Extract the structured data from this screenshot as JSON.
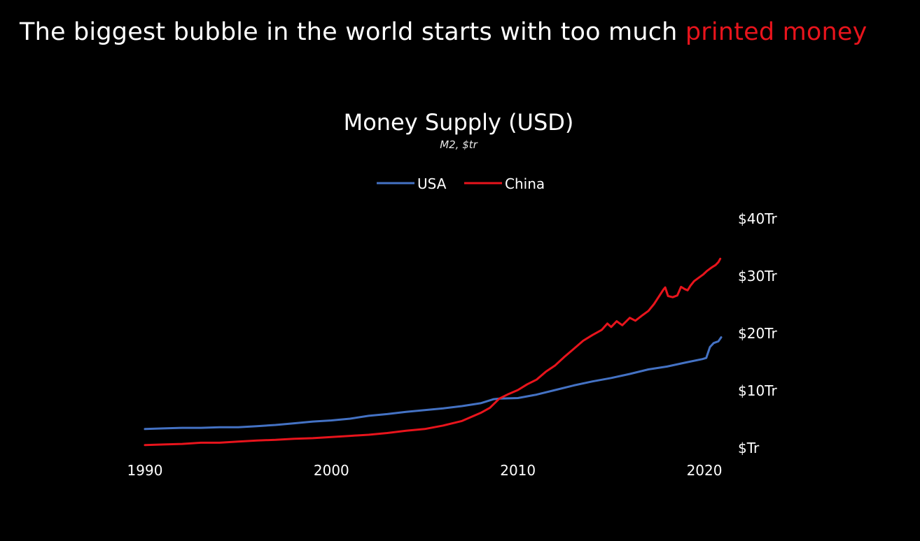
{
  "headline": {
    "text": "The biggest bubble in the world starts with too much ",
    "highlight": "printed money",
    "highlight_color": "#e8141c"
  },
  "chart_data": {
    "type": "line",
    "title": "Money Supply (USD)",
    "subtitle": "M2, $tr",
    "legend_position": "top-center",
    "grid": false,
    "y_axis_position": "right",
    "xlim": [
      1990,
      2020.9
    ],
    "ylim": [
      0,
      40
    ],
    "x_ticks": [
      1990,
      2000,
      2010,
      2020
    ],
    "x_tick_labels": [
      "1990",
      "2000",
      "2010",
      "2020"
    ],
    "y_ticks": [
      0,
      10,
      20,
      30,
      40
    ],
    "y_tick_labels": [
      "$Tr",
      "$10Tr",
      "$20Tr",
      "$30Tr",
      "$40Tr"
    ],
    "series": [
      {
        "name": "USA",
        "color": "#4472c4",
        "points": [
          [
            1990,
            3.2
          ],
          [
            1991,
            3.3
          ],
          [
            1992,
            3.4
          ],
          [
            1993,
            3.4
          ],
          [
            1994,
            3.5
          ],
          [
            1995,
            3.5
          ],
          [
            1996,
            3.7
          ],
          [
            1997,
            3.9
          ],
          [
            1998,
            4.2
          ],
          [
            1999,
            4.5
          ],
          [
            2000,
            4.7
          ],
          [
            2001,
            5.0
          ],
          [
            2002,
            5.5
          ],
          [
            2003,
            5.8
          ],
          [
            2004,
            6.2
          ],
          [
            2005,
            6.5
          ],
          [
            2006,
            6.8
          ],
          [
            2007,
            7.2
          ],
          [
            2008,
            7.7
          ],
          [
            2008.7,
            8.4
          ],
          [
            2009,
            8.5
          ],
          [
            2010,
            8.6
          ],
          [
            2011,
            9.2
          ],
          [
            2012,
            10.0
          ],
          [
            2013,
            10.8
          ],
          [
            2014,
            11.5
          ],
          [
            2015,
            12.1
          ],
          [
            2016,
            12.8
          ],
          [
            2017,
            13.6
          ],
          [
            2018,
            14.1
          ],
          [
            2019,
            14.8
          ],
          [
            2019.9,
            15.4
          ],
          [
            2020.1,
            15.6
          ],
          [
            2020.3,
            17.5
          ],
          [
            2020.5,
            18.2
          ],
          [
            2020.75,
            18.5
          ],
          [
            2020.9,
            19.2
          ]
        ]
      },
      {
        "name": "China",
        "color": "#e8141c",
        "points": [
          [
            1990,
            0.4
          ],
          [
            1991,
            0.5
          ],
          [
            1992,
            0.6
          ],
          [
            1993,
            0.8
          ],
          [
            1994,
            0.8
          ],
          [
            1995,
            1.0
          ],
          [
            1996,
            1.2
          ],
          [
            1997,
            1.3
          ],
          [
            1998,
            1.5
          ],
          [
            1999,
            1.6
          ],
          [
            2000,
            1.8
          ],
          [
            2001,
            2.0
          ],
          [
            2002,
            2.2
          ],
          [
            2003,
            2.5
          ],
          [
            2004,
            2.9
          ],
          [
            2005,
            3.2
          ],
          [
            2006,
            3.8
          ],
          [
            2007,
            4.6
          ],
          [
            2008,
            6.0
          ],
          [
            2008.5,
            6.9
          ],
          [
            2009,
            8.5
          ],
          [
            2009.5,
            9.3
          ],
          [
            2010,
            10.0
          ],
          [
            2010.5,
            11.0
          ],
          [
            2011,
            11.8
          ],
          [
            2011.5,
            13.2
          ],
          [
            2012,
            14.3
          ],
          [
            2012.5,
            15.8
          ],
          [
            2013,
            17.2
          ],
          [
            2013.5,
            18.6
          ],
          [
            2014,
            19.6
          ],
          [
            2014.5,
            20.5
          ],
          [
            2014.8,
            21.6
          ],
          [
            2015,
            21.0
          ],
          [
            2015.3,
            22.0
          ],
          [
            2015.6,
            21.3
          ],
          [
            2016,
            22.6
          ],
          [
            2016.3,
            22.1
          ],
          [
            2016.7,
            23.1
          ],
          [
            2017,
            23.8
          ],
          [
            2017.3,
            25.0
          ],
          [
            2017.6,
            26.5
          ],
          [
            2017.8,
            27.5
          ],
          [
            2017.9,
            27.9
          ],
          [
            2018.05,
            26.4
          ],
          [
            2018.3,
            26.2
          ],
          [
            2018.55,
            26.5
          ],
          [
            2018.75,
            28.0
          ],
          [
            2018.95,
            27.6
          ],
          [
            2019.1,
            27.4
          ],
          [
            2019.25,
            28.2
          ],
          [
            2019.45,
            29.0
          ],
          [
            2019.7,
            29.6
          ],
          [
            2019.95,
            30.2
          ],
          [
            2020.15,
            30.8
          ],
          [
            2020.4,
            31.4
          ],
          [
            2020.6,
            31.8
          ],
          [
            2020.75,
            32.3
          ],
          [
            2020.85,
            32.9
          ]
        ]
      }
    ]
  }
}
